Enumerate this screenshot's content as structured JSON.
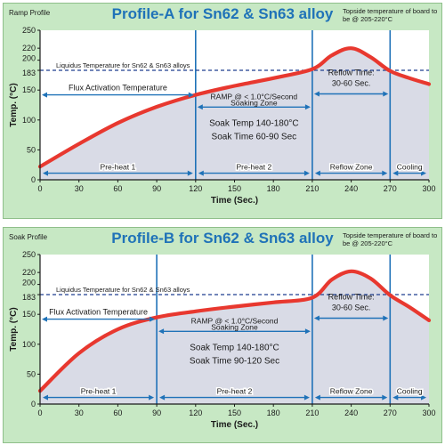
{
  "charts": [
    {
      "id": "A",
      "title": "Profile-A for Sn62 & Sn63 alloy",
      "corner_label": "Ramp Profile",
      "note": "Topside temperature of board to be @ 205-220°C",
      "liquidus_label": "Liquidus Temperature for Sn62 & Sn63 alloys",
      "flux_label": "Flux Activation Temperature",
      "ramp_label": "RAMP @ < 1.0°C/Second",
      "soak_zone_label": "Soaking Zone",
      "soak_temp": "Soak Temp 140-180°C",
      "soak_time": "Soak Time 60-90 Sec",
      "reflow_time_title": "Reflow Time:",
      "reflow_time_value": "30-60 Sec.",
      "zones": [
        {
          "label": "Pre-heat 1",
          "from": 0,
          "to": 120
        },
        {
          "label": "Pre-heat 2",
          "from": 120,
          "to": 210
        },
        {
          "label": "Reflow Zone",
          "from": 210,
          "to": 270
        },
        {
          "label": "Cooling",
          "from": 270,
          "to": 300
        }
      ]
    },
    {
      "id": "B",
      "title": "Profile-B for Sn62 & Sn63 alloy",
      "corner_label": "Soak Profile",
      "note": "Topside temperature of board to be @ 205-220°C",
      "liquidus_label": "Liquidus Temperature for Sn62 & Sn63 alloys",
      "flux_label": "Flux Activation Temperature",
      "ramp_label": "RAMP @ < 1.0°C/Second",
      "soak_zone_label": "Soaking Zone",
      "soak_temp": "Soak Temp 140-180°C",
      "soak_time": "Soak Time 90-120 Sec",
      "reflow_time_title": "Reflow Time:",
      "reflow_time_value": "30-60 Sec.",
      "zones": [
        {
          "label": "Pre-heat 1",
          "from": 0,
          "to": 90
        },
        {
          "label": "Pre-heat 2",
          "from": 90,
          "to": 210
        },
        {
          "label": "Reflow Zone",
          "from": 210,
          "to": 270
        },
        {
          "label": "Cooling",
          "from": 270,
          "to": 300
        }
      ]
    }
  ],
  "colors": {
    "curve": "#e8382f",
    "arrow": "#1f72b8",
    "title": "#1f72b8",
    "panel_bg": "#c7e8c4",
    "plot_bg": "#ffffff",
    "fill": "#d9dbe6",
    "liquidus_line": "#1f3f8f"
  },
  "chart_data": [
    {
      "type": "line",
      "title": "Profile-A for Sn62 & Sn63 alloy",
      "xlabel": "Time (Sec.)",
      "ylabel": "Temp. (°C)",
      "xlim": [
        0,
        300
      ],
      "ylim": [
        0,
        250
      ],
      "xticks": [
        0,
        30,
        60,
        90,
        120,
        150,
        180,
        210,
        240,
        270,
        300
      ],
      "yticks": [
        0,
        50,
        100,
        150,
        183,
        200,
        220,
        250
      ],
      "liquidus": 183,
      "series": [
        {
          "x": [
            0,
            30,
            60,
            90,
            120,
            150,
            180,
            210,
            225,
            240,
            255,
            270,
            285,
            300
          ],
          "y": [
            22,
            60,
            95,
            122,
            142,
            157,
            170,
            185,
            208,
            220,
            205,
            182,
            170,
            160
          ]
        }
      ],
      "grid": false
    },
    {
      "type": "line",
      "title": "Profile-B for Sn62 & Sn63 alloy",
      "xlabel": "Time (Sec.)",
      "ylabel": "Temp. (°C)",
      "xlim": [
        0,
        300
      ],
      "ylim": [
        0,
        250
      ],
      "xticks": [
        0,
        30,
        60,
        90,
        120,
        150,
        180,
        210,
        240,
        270,
        300
      ],
      "yticks": [
        0,
        50,
        100,
        150,
        183,
        200,
        220,
        250
      ],
      "liquidus": 183,
      "series": [
        {
          "x": [
            0,
            30,
            60,
            90,
            120,
            150,
            180,
            210,
            225,
            240,
            255,
            270,
            285,
            300
          ],
          "y": [
            22,
            85,
            125,
            145,
            155,
            163,
            170,
            178,
            208,
            222,
            210,
            182,
            162,
            140
          ]
        }
      ],
      "grid": false
    }
  ]
}
